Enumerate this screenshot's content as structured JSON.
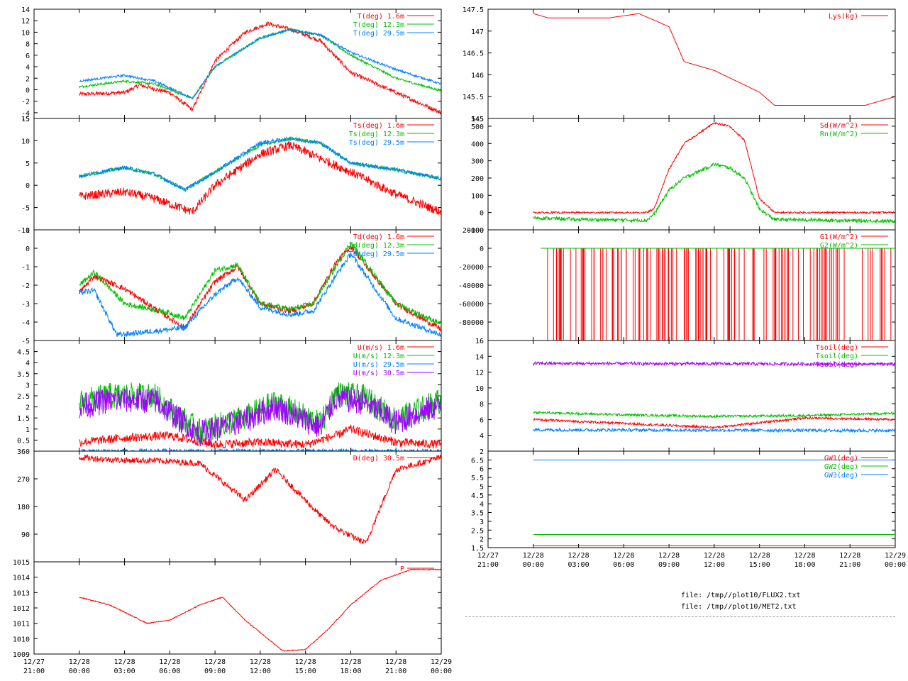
{
  "files": [
    "file: /tmp//plot10/FLUX2.txt",
    "file: /tmp//plot10/MET2.txt"
  ],
  "time_axis": {
    "x_min": "12/27 21:00",
    "x_max": "12/29 00:00",
    "tick_labels": [
      [
        "12/27",
        "21:00"
      ],
      [
        "12/28",
        "00:00"
      ],
      [
        "12/28",
        "03:00"
      ],
      [
        "12/28",
        "06:00"
      ],
      [
        "12/28",
        "09:00"
      ],
      [
        "12/28",
        "12:00"
      ],
      [
        "12/28",
        "15:00"
      ],
      [
        "12/28",
        "18:00"
      ],
      [
        "12/28",
        "21:00"
      ],
      [
        "12/29",
        "00:00"
      ]
    ]
  },
  "chart_data": [
    {
      "type": "line",
      "name": "air-temperature",
      "ylim": [
        -5,
        14
      ],
      "yticks": [
        "14",
        "12",
        "10",
        "8",
        "6",
        "4",
        "2",
        "0",
        "-2",
        "-4",
        "-5"
      ],
      "legend": "top-right",
      "series": [
        {
          "name": "T(deg)  1.6m",
          "color": "#ff0000",
          "noise": 0.35,
          "x": [
            "12/28 00:00",
            "12/28 03:00",
            "12/28 04:00",
            "12/28 06:00",
            "12/28 07:30",
            "12/28 09:00",
            "12/28 11:00",
            "12/28 12:30",
            "12/28 14:00",
            "12/28 16:00",
            "12/28 18:00",
            "12/28 21:00",
            "12/29 00:00"
          ],
          "y": [
            -0.8,
            -0.5,
            0.8,
            -0.5,
            -3.5,
            5,
            10,
            11.5,
            10.5,
            8.5,
            3,
            -0.5,
            -4
          ]
        },
        {
          "name": "T(deg) 12.3m",
          "color": "#00c000",
          "noise": 0.2,
          "x": [
            "12/28 00:00",
            "12/28 03:00",
            "12/28 05:00",
            "12/28 07:30",
            "12/28 09:00",
            "12/28 12:00",
            "12/28 14:00",
            "12/28 16:00",
            "12/28 18:00",
            "12/28 21:00",
            "12/29 00:00"
          ],
          "y": [
            0.5,
            1.5,
            1,
            -1.5,
            4,
            9,
            10.5,
            9.5,
            6,
            2,
            -0.2
          ]
        },
        {
          "name": "T(deg) 29.5m",
          "color": "#0080ff",
          "noise": 0.2,
          "x": [
            "12/28 00:00",
            "12/28 03:00",
            "12/28 05:00",
            "12/28 07:30",
            "12/28 09:00",
            "12/28 12:00",
            "12/28 14:00",
            "12/28 16:00",
            "12/28 18:00",
            "12/28 21:00",
            "12/29 00:00"
          ],
          "y": [
            1.5,
            2.5,
            1.5,
            -1.5,
            4,
            9,
            10.5,
            9.5,
            6.5,
            3.5,
            1
          ]
        }
      ]
    },
    {
      "type": "line",
      "name": "surface-temperature",
      "ylim": [
        -10,
        15
      ],
      "yticks": [
        "15",
        "10",
        "5",
        "0",
        "-5",
        "-10"
      ],
      "legend": "top-right",
      "series": [
        {
          "name": "Ts(deg)  1.6m",
          "color": "#ff0000",
          "noise": 1.0,
          "x": [
            "12/28 00:00",
            "12/28 03:00",
            "12/28 05:00",
            "12/28 07:30",
            "12/28 09:00",
            "12/28 12:00",
            "12/28 14:00",
            "12/28 16:00",
            "12/28 18:00",
            "12/28 21:00",
            "12/29 00:00"
          ],
          "y": [
            -2.5,
            -1.5,
            -3,
            -6,
            0,
            7,
            9,
            6,
            3,
            -2,
            -6
          ]
        },
        {
          "name": "Ts(deg) 12.3m",
          "color": "#00c000",
          "noise": 0.35,
          "x": [
            "12/28 00:00",
            "12/28 03:00",
            "12/28 05:00",
            "12/28 07:00",
            "12/28 09:00",
            "12/28 12:00",
            "12/28 14:00",
            "12/28 16:00",
            "12/28 18:00",
            "12/28 21:00",
            "12/29 00:00"
          ],
          "y": [
            2,
            4,
            2.5,
            -1,
            3,
            9,
            10.5,
            9.5,
            5,
            3.5,
            1.5
          ]
        },
        {
          "name": "Ts(deg) 29.5m",
          "color": "#0080ff",
          "noise": 0.45,
          "x": [
            "12/28 00:00",
            "12/28 03:00",
            "12/28 05:00",
            "12/28 07:00",
            "12/28 09:00",
            "12/28 12:00",
            "12/28 14:00",
            "12/28 16:00",
            "12/28 18:00",
            "12/28 21:00",
            "12/29 00:00"
          ],
          "y": [
            2,
            4,
            2.5,
            -1,
            3,
            9.5,
            10.5,
            9.5,
            5,
            3.5,
            1.5
          ]
        }
      ]
    },
    {
      "type": "line",
      "name": "dew-point",
      "ylim": [
        -5,
        1
      ],
      "yticks": [
        "1",
        "0",
        "-1",
        "-2",
        "-3",
        "-4",
        "-5"
      ],
      "legend": "top-right",
      "series": [
        {
          "name": "Td(deg)  1.6m",
          "color": "#ff0000",
          "noise": 0.15,
          "x": [
            "12/28 00:00",
            "12/28 01:00",
            "12/28 03:00",
            "12/28 06:00",
            "12/28 07:00",
            "12/28 09:00",
            "12/28 10:30",
            "12/28 12:00",
            "12/28 14:00",
            "12/28 15:30",
            "12/28 17:00",
            "12/28 18:00",
            "12/28 21:00",
            "12/29 00:00"
          ],
          "y": [
            -2.4,
            -1.5,
            -2.2,
            -3.8,
            -4.3,
            -1.8,
            -1.0,
            -3.0,
            -3.4,
            -3.0,
            -0.8,
            0.1,
            -3.0,
            -4.4
          ]
        },
        {
          "name": "Td(deg) 12.3m",
          "color": "#00c000",
          "noise": 0.15,
          "x": [
            "12/28 00:00",
            "12/28 01:00",
            "12/28 03:00",
            "12/28 06:00",
            "12/28 07:00",
            "12/28 09:00",
            "12/28 10:30",
            "12/28 12:00",
            "12/28 14:00",
            "12/28 15:30",
            "12/28 17:00",
            "12/28 18:00",
            "12/28 21:00",
            "12/29 00:00"
          ],
          "y": [
            -2.0,
            -1.3,
            -3.0,
            -3.5,
            -3.8,
            -1.2,
            -0.9,
            -3.0,
            -3.3,
            -3.0,
            -1.0,
            0.3,
            -3.0,
            -4.1
          ]
        },
        {
          "name": "Td(deg) 29.5m",
          "color": "#0080ff",
          "noise": 0.15,
          "x": [
            "12/28 00:00",
            "12/28 01:00",
            "12/28 02:30",
            "12/28 06:00",
            "12/28 07:00",
            "12/28 09:00",
            "12/28 10:30",
            "12/28 12:00",
            "12/28 14:00",
            "12/28 15:30",
            "12/28 17:00",
            "12/28 18:00",
            "12/28 21:00",
            "12/29 00:00"
          ],
          "y": [
            -2.4,
            -2.3,
            -4.7,
            -4.4,
            -4.3,
            -2.5,
            -1.6,
            -3.2,
            -3.6,
            -3.4,
            -1.5,
            -0.3,
            -3.8,
            -4.7
          ]
        }
      ]
    },
    {
      "type": "line",
      "name": "wind-speed",
      "ylim": [
        0,
        5
      ],
      "yticks": [
        "4.5",
        "4",
        "3.5",
        "3",
        "2.5",
        "2",
        "1.5",
        "1",
        "0.5"
      ],
      "legend": "top-right",
      "series": [
        {
          "name": "U(m/s)  1.6m",
          "color": "#ff0000",
          "noise": 0.2,
          "x": [
            "12/28 00:00",
            "12/28 03:00",
            "12/28 06:00",
            "12/28 09:00",
            "12/28 12:00",
            "12/28 15:00",
            "12/28 17:00",
            "12/28 18:00",
            "12/28 21:00",
            "12/29 00:00"
          ],
          "y": [
            0.4,
            0.6,
            0.7,
            0.3,
            0.4,
            0.3,
            0.7,
            1.0,
            0.4,
            0.3
          ]
        },
        {
          "name": "U(m/s) 12.3m",
          "color": "#00c000",
          "noise": 0.6,
          "x": [
            "12/28 00:00",
            "12/28 02:00",
            "12/28 05:00",
            "12/28 06:30",
            "12/28 08:00",
            "12/28 11:00",
            "12/28 13:00",
            "12/28 16:00",
            "12/28 17:00",
            "12/28 19:00",
            "12/28 21:00",
            "12/29 00:00"
          ],
          "y": [
            2.2,
            2.5,
            2.5,
            1.6,
            0.9,
            1.5,
            2.2,
            1.2,
            2.6,
            2.4,
            1.4,
            2.3
          ]
        },
        {
          "name": "U(m/s) 29.5m",
          "color": "#0080ff",
          "noise": 0.1,
          "x": [
            "12/28 00:00",
            "12/29 00:00"
          ],
          "y": [
            0,
            0
          ]
        },
        {
          "name": "U(m/s) 30.5m",
          "color": "#a000ff",
          "noise": 0.6,
          "x": [
            "12/28 00:00",
            "12/28 02:00",
            "12/28 05:00",
            "12/28 06:30",
            "12/28 08:00",
            "12/28 11:00",
            "12/28 13:00",
            "12/28 16:00",
            "12/28 17:00",
            "12/28 19:00",
            "12/28 21:00",
            "12/29 00:00"
          ],
          "y": [
            2.0,
            2.3,
            2.3,
            1.5,
            0.8,
            1.4,
            2.0,
            1.1,
            2.4,
            2.2,
            1.3,
            2.1
          ]
        }
      ]
    },
    {
      "type": "line",
      "name": "wind-direction",
      "ylim": [
        0,
        360
      ],
      "yticks": [
        "360",
        "270",
        "180",
        "90"
      ],
      "legend": "top-right",
      "series": [
        {
          "name": "D(deg) 30.5m",
          "color": "#ff0000",
          "noise": 10,
          "x": [
            "12/28 00:00",
            "12/28 03:00",
            "12/28 05:00",
            "12/28 08:00",
            "12/28 11:00",
            "12/28 13:00",
            "12/28 16:00",
            "12/28 17:00",
            "12/28 19:00",
            "12/28 21:00",
            "12/29 00:00"
          ],
          "y": [
            340,
            330,
            330,
            320,
            200,
            300,
            150,
            110,
            60,
            300,
            340
          ]
        }
      ]
    },
    {
      "type": "line",
      "name": "pressure",
      "ylim": [
        1009,
        1015
      ],
      "yticks": [
        "1015",
        "1014",
        "1013",
        "1012",
        "1011",
        "1010",
        "1009"
      ],
      "legend": "top-right",
      "series": [
        {
          "name": "P",
          "color": "#ff0000",
          "noise": 0.03,
          "x": [
            "12/28 00:00",
            "12/28 02:00",
            "12/28 04:30",
            "12/28 06:00",
            "12/28 08:00",
            "12/28 09:30",
            "12/28 11:00",
            "12/28 13:30",
            "12/28 15:00",
            "12/28 16:30",
            "12/28 18:00",
            "12/28 20:00",
            "12/28 22:00",
            "12/29 00:00"
          ],
          "y": [
            1012.7,
            1012.2,
            1011.0,
            1011.2,
            1012.2,
            1012.7,
            1011.2,
            1009.2,
            1009.3,
            1010.6,
            1012.2,
            1013.8,
            1014.5,
            1014.5
          ]
        }
      ]
    },
    {
      "type": "line",
      "name": "lysimeter",
      "ylim": [
        145,
        147.5
      ],
      "yticks": [
        "147.5",
        "147",
        "146.5",
        "146",
        "145.5",
        "145"
      ],
      "legend": "top-right",
      "series": [
        {
          "name": "Lys(kg)",
          "color": "#ff0000",
          "noise": 0,
          "x": [
            "12/28 00:00",
            "12/28 01:00",
            "12/28 05:00",
            "12/28 07:00",
            "12/28 09:00",
            "12/28 10:00",
            "12/28 12:00",
            "12/28 15:00",
            "12/28 16:00",
            "12/28 19:00",
            "12/28 22:00",
            "12/29 00:00"
          ],
          "y": [
            147.4,
            147.3,
            147.3,
            147.4,
            147.1,
            146.3,
            146.1,
            145.6,
            145.3,
            145.3,
            145.3,
            145.5
          ]
        }
      ]
    },
    {
      "type": "line",
      "name": "radiation",
      "ylim": [
        -100,
        545
      ],
      "yticks": [
        "545",
        "500",
        "400",
        "300",
        "200",
        "100",
        "0",
        "-100"
      ],
      "legend": "top-right",
      "series": [
        {
          "name": "Sd(W/m^2)",
          "color": "#ff0000",
          "noise": 5,
          "x": [
            "12/28 00:00",
            "12/28 07:30",
            "12/28 08:00",
            "12/28 09:00",
            "12/28 10:00",
            "12/28 12:00",
            "12/28 13:00",
            "12/28 14:00",
            "12/28 15:00",
            "12/28 16:00",
            "12/29 00:00"
          ],
          "y": [
            0,
            0,
            20,
            250,
            400,
            520,
            500,
            420,
            80,
            0,
            0
          ]
        },
        {
          "name": "Rn(W/m^2)",
          "color": "#00c000",
          "noise": 10,
          "x": [
            "12/28 00:00",
            "12/28 03:00",
            "12/28 07:30",
            "12/28 08:00",
            "12/28 09:00",
            "12/28 10:00",
            "12/28 12:00",
            "12/28 13:00",
            "12/28 14:00",
            "12/28 15:00",
            "12/28 16:00",
            "12/29 00:00"
          ],
          "y": [
            -30,
            -40,
            -45,
            -10,
            130,
            200,
            280,
            260,
            200,
            20,
            -40,
            -50
          ]
        }
      ]
    },
    {
      "type": "line",
      "name": "ground-heat-flux",
      "ylim": [
        -100000,
        20000
      ],
      "yticks": [
        "20000",
        "0",
        "-20000",
        "-40000",
        "-60000",
        "-80000"
      ],
      "legend": "top-right",
      "series": [
        {
          "name": "G1(W/m^2)",
          "color": "#ff0000",
          "noise": 0,
          "x": [
            "12/28 00:30",
            "12/29 00:00"
          ],
          "y": [
            0,
            0
          ],
          "spikes_to": -100000
        },
        {
          "name": "G2(W/m^2)",
          "color": "#00c000",
          "noise": 0,
          "x": [
            "12/28 00:30",
            "12/29 00:00"
          ],
          "y": [
            0,
            0
          ]
        }
      ]
    },
    {
      "type": "line",
      "name": "soil-temperature",
      "ylim": [
        2,
        16
      ],
      "yticks": [
        "16",
        "14",
        "12",
        "10",
        "8",
        "6",
        "4",
        "2"
      ],
      "legend": "top-right",
      "series": [
        {
          "name": "Tsoil(deg)",
          "color": "#ff0000",
          "noise": 0.15,
          "x": [
            "12/28 00:00",
            "12/28 06:00",
            "12/28 12:00",
            "12/28 18:00",
            "12/29 00:00"
          ],
          "y": [
            6,
            5.5,
            5,
            6.2,
            6
          ]
        },
        {
          "name": "Tsoil(deg)",
          "color": "#00c000",
          "noise": 0.15,
          "x": [
            "12/28 00:00",
            "12/28 06:00",
            "12/28 12:00",
            "12/28 18:00",
            "12/29 00:00"
          ],
          "y": [
            6.9,
            6.6,
            6.4,
            6.5,
            6.8
          ]
        },
        {
          "name": "",
          "color": "#0080ff",
          "noise": 0.2,
          "x": [
            "12/28 00:00",
            "12/29 00:00"
          ],
          "y": [
            4.7,
            4.6
          ]
        },
        {
          "name": "Tsoil(deg)",
          "color": "#a000ff",
          "noise": 0.2,
          "x": [
            "12/28 00:00",
            "12/29 00:00"
          ],
          "y": [
            13.1,
            13
          ]
        }
      ]
    },
    {
      "type": "line",
      "name": "groundwater",
      "ylim": [
        1.5,
        7
      ],
      "yticks": [
        "6.5",
        "6",
        "5.5",
        "5",
        "4.5",
        "4",
        "3.5",
        "3",
        "2.5",
        "2",
        "1.5"
      ],
      "legend": "top-right",
      "series": [
        {
          "name": "GW1(deg)",
          "color": "#ff0000",
          "noise": 0,
          "x": [
            "12/28 00:00",
            "12/29 00:00"
          ],
          "y": [
            1.6,
            1.6
          ]
        },
        {
          "name": "GW2(deg)",
          "color": "#00c000",
          "noise": 0,
          "x": [
            "12/28 00:00",
            "12/29 00:00"
          ],
          "y": [
            2.25,
            2.25
          ]
        },
        {
          "name": "GW3(deg)",
          "color": "#0080ff",
          "noise": 0,
          "x": [
            "12/28 00:00",
            "12/29 00:00"
          ],
          "y": [
            6.5,
            6.5
          ]
        }
      ]
    }
  ]
}
